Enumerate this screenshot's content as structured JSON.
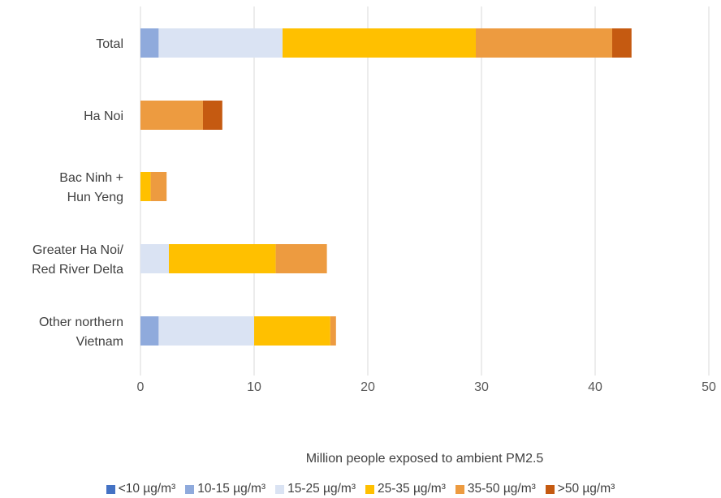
{
  "chart_data": {
    "type": "bar",
    "orientation": "horizontal",
    "stacked": true,
    "categories": [
      [
        "Total"
      ],
      [
        "Ha Noi"
      ],
      [
        "Bac Ninh +",
        "Hun Yeng "
      ],
      [
        "Greater Ha Noi/",
        "Red River Delta"
      ],
      [
        "Other northern",
        "Vietnam"
      ]
    ],
    "series": [
      {
        "name": "<10 µg/m³",
        "color": "#4472C4",
        "values": [
          0,
          0,
          0,
          0,
          0
        ]
      },
      {
        "name": "10-15  µg/m³",
        "color": "#8FAADC",
        "values": [
          1.6,
          0,
          0,
          0,
          1.6
        ]
      },
      {
        "name": "15-25 µg/m³",
        "color": "#DAE3F3",
        "values": [
          10.9,
          0,
          0,
          2.5,
          8.4
        ]
      },
      {
        "name": "25-35 µg/m³",
        "color": "#FFC000",
        "values": [
          17.0,
          0,
          0.9,
          9.4,
          6.7
        ]
      },
      {
        "name": "35-50 µg/m³",
        "color": "#ED9B40",
        "values": [
          12.0,
          5.5,
          1.4,
          4.5,
          0.5
        ]
      },
      {
        "name": ">50 µg/m³",
        "color": "#C55A11",
        "values": [
          1.7,
          1.7,
          0,
          0,
          0
        ]
      }
    ],
    "xlabel": "Million people exposed to ambient PM2.5",
    "ylabel": "",
    "xlim": [
      0,
      50
    ],
    "xticks": [
      0,
      10,
      20,
      30,
      40,
      50
    ],
    "grid": "vertical",
    "legend_position": "bottom"
  }
}
